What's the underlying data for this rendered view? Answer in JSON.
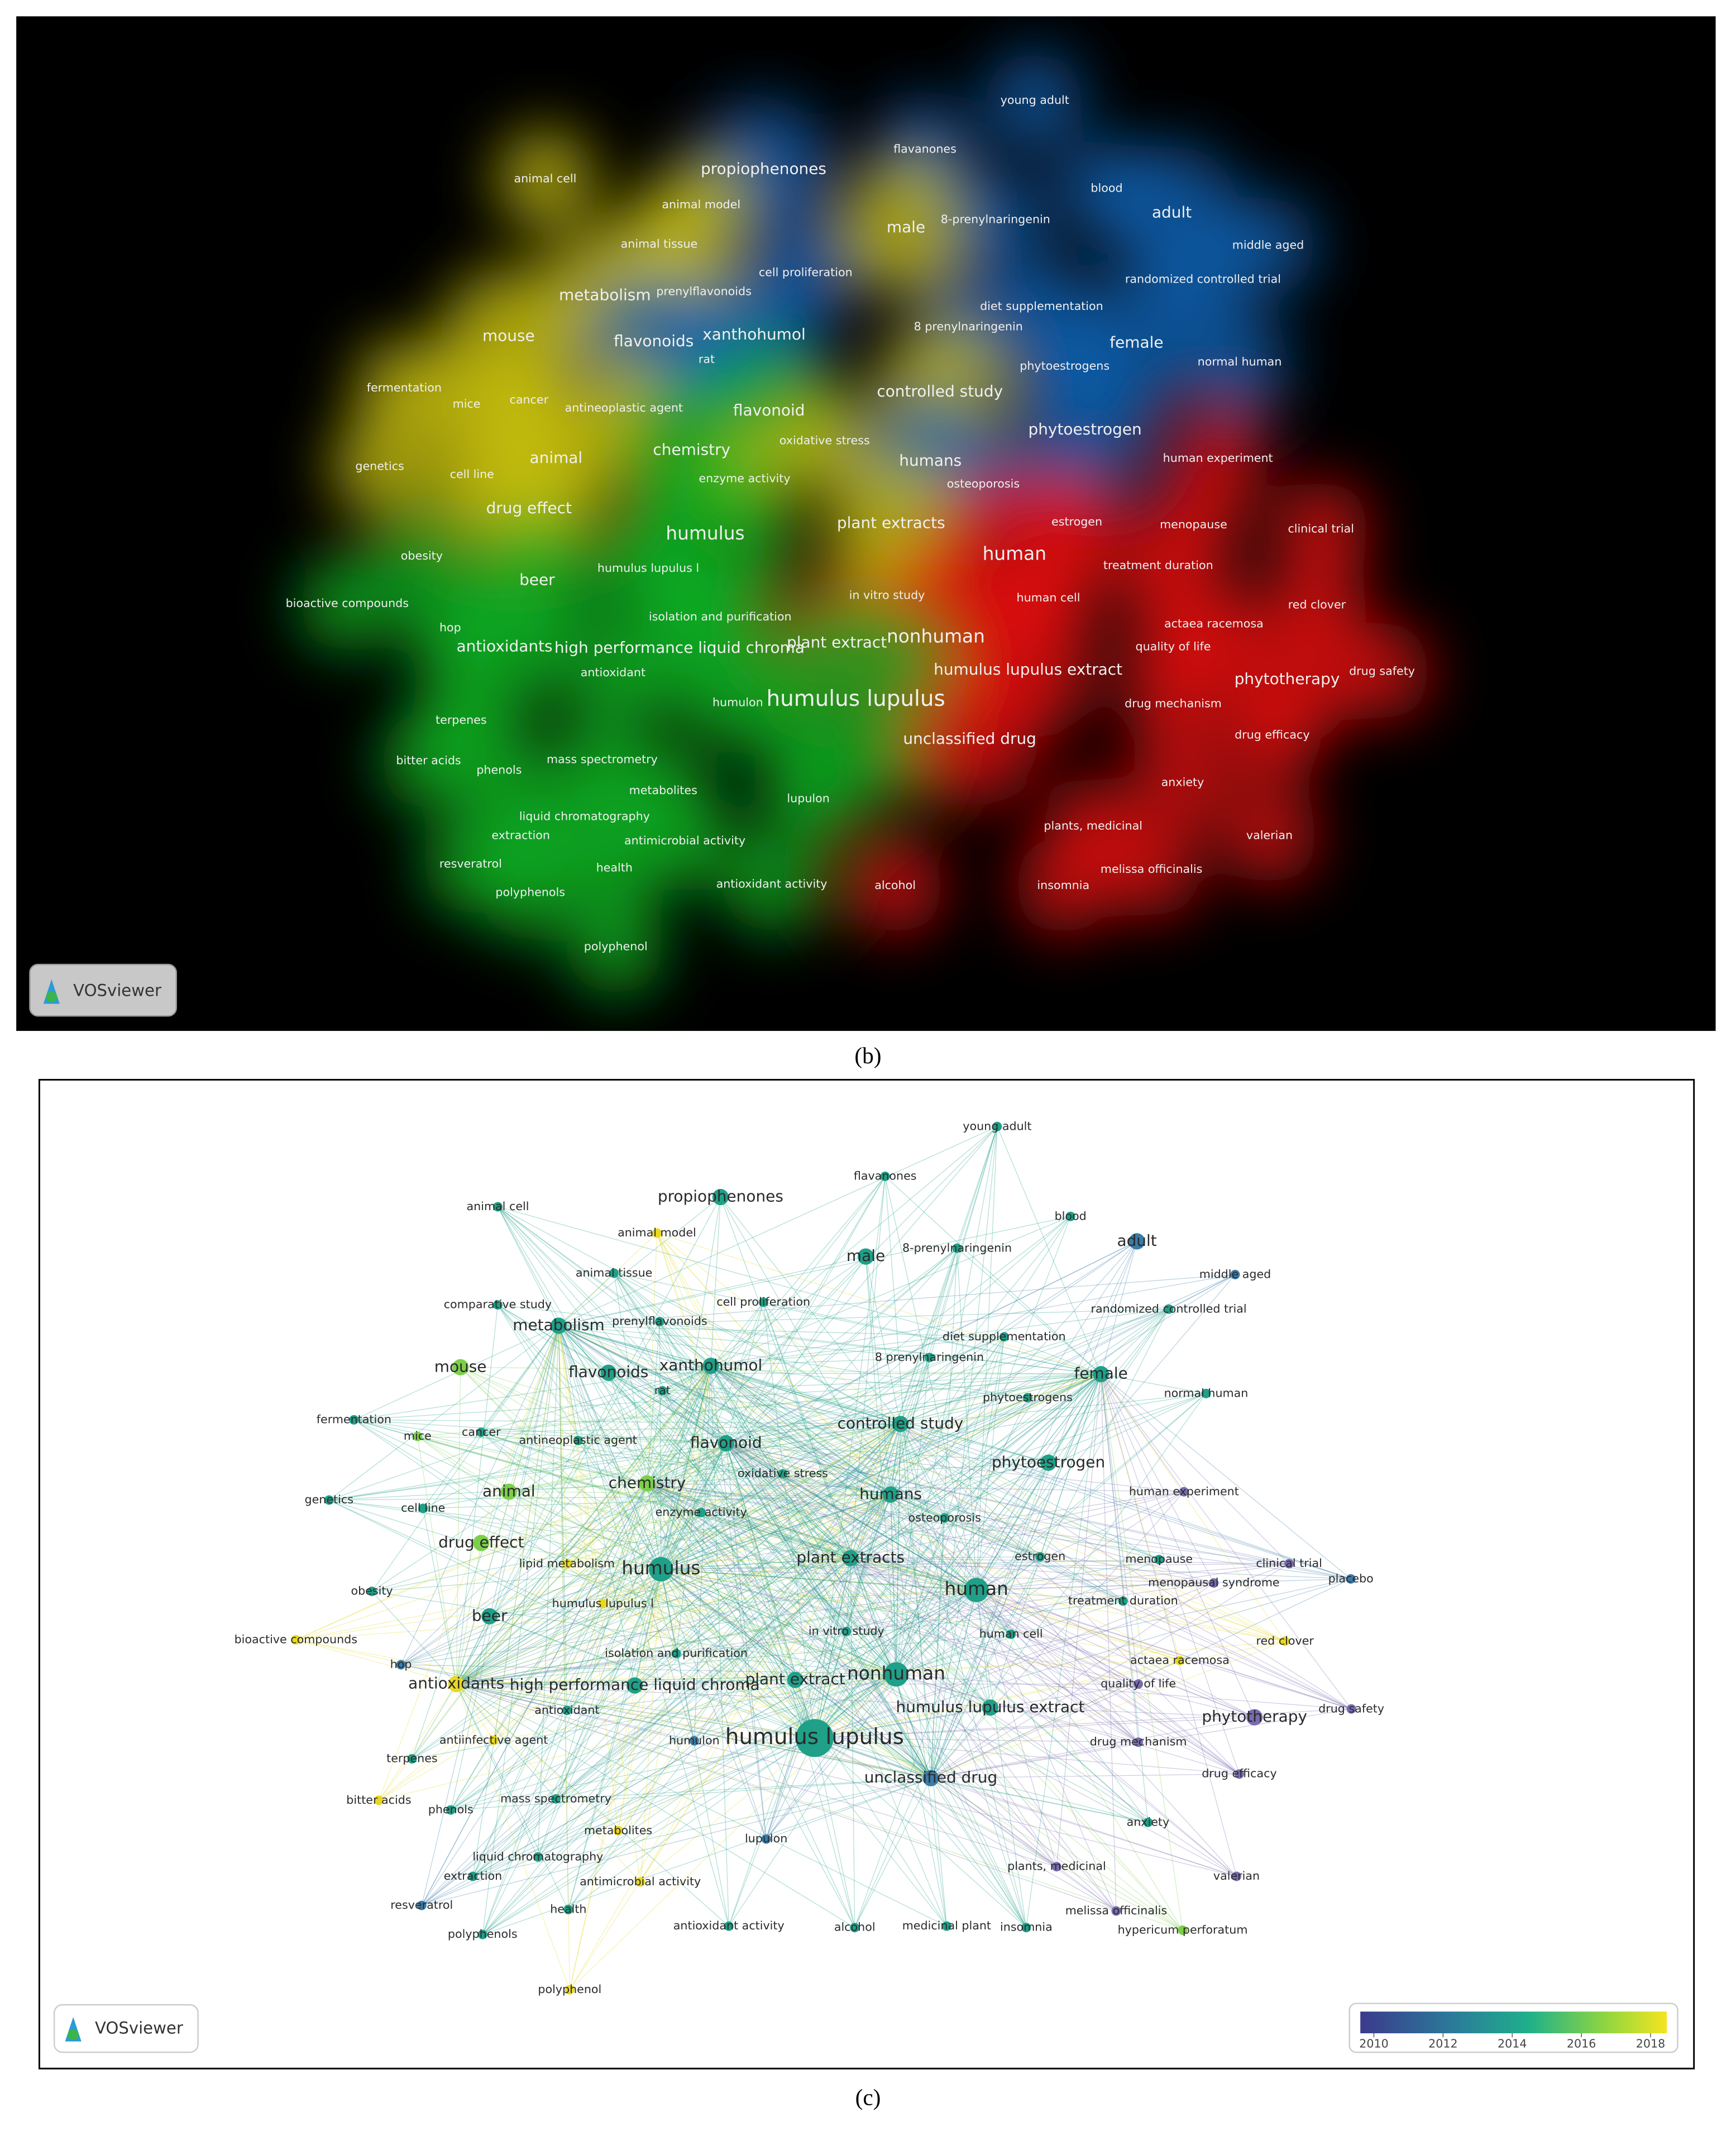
{
  "logo": "VOSviewer",
  "panel_b": {
    "caption": "(b)",
    "terms": [
      "young adult",
      "propiophenones",
      "flavanones",
      "animal cell",
      "blood",
      "adult",
      "animal model",
      "male",
      "8-prenylnaringenin",
      "animal tissue",
      "middle aged",
      "cell proliferation",
      "randomized controlled trial",
      "metabolism",
      "prenylflavonoids",
      "diet supplementation",
      "8 prenylnaringenin",
      "mouse",
      "flavonoids",
      "xanthohumol",
      "female",
      "rat",
      "phytoestrogens",
      "normal human",
      "fermentation",
      "controlled study",
      "mice",
      "cancer",
      "antineoplastic agent",
      "flavonoid",
      "phytoestrogen",
      "oxidative stress",
      "chemistry",
      "animal",
      "humans",
      "human experiment",
      "genetics",
      "cell line",
      "enzyme activity",
      "osteoporosis",
      "drug effect",
      "plant extracts",
      "estrogen",
      "menopause",
      "clinical trial",
      "humulus",
      "obesity",
      "human",
      "humulus lupulus l",
      "treatment duration",
      "beer",
      "in vitro study",
      "human cell",
      "bioactive compounds",
      "red clover",
      "isolation and purification",
      "actaea racemosa",
      "hop",
      "nonhuman",
      "plant extract",
      "antioxidants",
      "high performance liquid chroma",
      "quality of life",
      "humulus lupulus extract",
      "antioxidant",
      "phytotherapy",
      "drug safety",
      "humulon",
      "humulus lupulus",
      "drug mechanism",
      "terpenes",
      "unclassified drug",
      "drug efficacy",
      "bitter acids",
      "mass spectrometry",
      "phenols",
      "metabolites",
      "anxiety",
      "lupulon",
      "liquid chromatography",
      "plants, medicinal",
      "extraction",
      "antimicrobial activity",
      "valerian",
      "resveratrol",
      "health",
      "melissa officinalis",
      "polyphenols",
      "antioxidant activity",
      "alcohol",
      "insomnia",
      "polyphenol"
    ]
  },
  "panel_c": {
    "caption": "(c)",
    "terms": [
      "young adult",
      "propiophenones",
      "flavanones",
      "animal cell",
      "blood",
      "adult",
      "animal model",
      "male",
      "8-prenylnaringenin",
      "animal tissue",
      "middle aged",
      "cell proliferation",
      "randomized controlled trial",
      "metabolism",
      "prenylflavonoids",
      "diet supplementation",
      "8 prenylnaringenin",
      "mouse",
      "flavonoids",
      "xanthohumol",
      "female",
      "rat",
      "phytoestrogens",
      "normal human",
      "fermentation",
      "controlled study",
      "mice",
      "cancer",
      "antineoplastic agent",
      "flavonoid",
      "phytoestrogen",
      "oxidative stress",
      "chemistry",
      "animal",
      "humans",
      "human experiment",
      "genetics",
      "cell line",
      "enzyme activity",
      "osteoporosis",
      "drug effect",
      "plant extracts",
      "estrogen",
      "menopause",
      "clinical trial",
      "humulus",
      "obesity",
      "human",
      "humulus lupulus l",
      "treatment duration",
      "beer",
      "in vitro study",
      "human cell",
      "bioactive compounds",
      "red clover",
      "isolation and purification",
      "actaea racemosa",
      "hop",
      "nonhuman",
      "plant extract",
      "antioxidants",
      "high performance liquid chroma",
      "quality of life",
      "humulus lupulus extract",
      "antioxidant",
      "phytotherapy",
      "drug safety",
      "humulon",
      "humulus lupulus",
      "drug mechanism",
      "terpenes",
      "unclassified drug",
      "drug efficacy",
      "bitter acids",
      "mass spectrometry",
      "phenols",
      "metabolites",
      "anxiety",
      "lupulon",
      "liquid chromatography",
      "plants, medicinal",
      "extraction",
      "antimicrobial activity",
      "valerian",
      "resveratrol",
      "health",
      "melissa officinalis",
      "polyphenols",
      "antioxidant activity",
      "alcohol",
      "insomnia",
      "polyphenol",
      "comparative study",
      "lipid metabolism",
      "antiinfective agent",
      "menopausal syndrome",
      "placebo",
      "medicinal plant",
      "hypericum perforatum"
    ],
    "colorbar_ticks": [
      2010,
      2012,
      2014,
      2016,
      2018
    ]
  }
}
